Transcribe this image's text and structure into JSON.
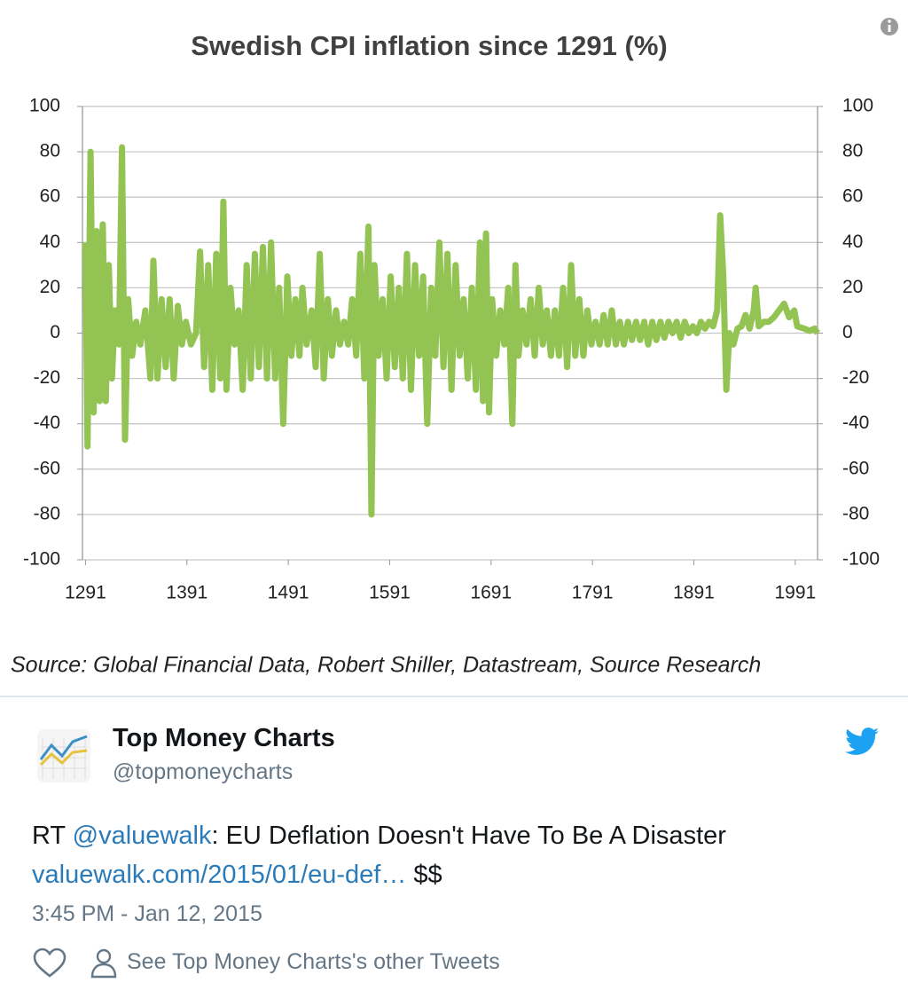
{
  "chart_data": {
    "type": "line",
    "title": "Swedish CPI inflation since 1291 (%)",
    "x": [
      1291,
      1293,
      1296,
      1299,
      1302,
      1305,
      1308,
      1311,
      1314,
      1317,
      1320,
      1324,
      1327,
      1330,
      1333,
      1337,
      1341,
      1345,
      1350,
      1355,
      1358,
      1362,
      1366,
      1370,
      1374,
      1378,
      1382,
      1386,
      1390,
      1395,
      1400,
      1404,
      1408,
      1412,
      1416,
      1420,
      1424,
      1427,
      1430,
      1434,
      1438,
      1442,
      1446,
      1450,
      1454,
      1458,
      1462,
      1466,
      1470,
      1474,
      1478,
      1482,
      1486,
      1490,
      1494,
      1498,
      1502,
      1505,
      1509,
      1514,
      1518,
      1522,
      1526,
      1530,
      1534,
      1538,
      1542,
      1546,
      1550,
      1554,
      1558,
      1562,
      1566,
      1570,
      1573,
      1576,
      1580,
      1584,
      1588,
      1592,
      1596,
      1600,
      1604,
      1608,
      1612,
      1616,
      1620,
      1624,
      1628,
      1632,
      1636,
      1640,
      1644,
      1648,
      1652,
      1656,
      1660,
      1664,
      1668,
      1672,
      1676,
      1680,
      1683,
      1686,
      1689,
      1692,
      1696,
      1700,
      1704,
      1708,
      1712,
      1715,
      1718,
      1722,
      1726,
      1730,
      1734,
      1738,
      1742,
      1746,
      1750,
      1754,
      1758,
      1762,
      1766,
      1770,
      1774,
      1778,
      1782,
      1786,
      1790,
      1794,
      1798,
      1802,
      1806,
      1810,
      1814,
      1818,
      1822,
      1826,
      1830,
      1834,
      1838,
      1842,
      1846,
      1850,
      1854,
      1858,
      1862,
      1866,
      1870,
      1874,
      1878,
      1882,
      1886,
      1890,
      1894,
      1898,
      1902,
      1906,
      1910,
      1914,
      1917,
      1920,
      1923,
      1926,
      1930,
      1934,
      1938,
      1942,
      1946,
      1950,
      1952,
      1955,
      1960,
      1965,
      1970,
      1975,
      1980,
      1985,
      1990,
      1993,
      2000,
      2005,
      2010,
      2013
    ],
    "values": [
      40,
      -50,
      80,
      -35,
      45,
      -30,
      48,
      -30,
      30,
      -20,
      10,
      -5,
      82,
      -47,
      15,
      -10,
      5,
      -5,
      10,
      -20,
      32,
      -20,
      15,
      -15,
      15,
      -20,
      12,
      -5,
      5,
      -5,
      0,
      36,
      -15,
      30,
      -25,
      35,
      -20,
      58,
      -25,
      20,
      -5,
      10,
      -25,
      30,
      -20,
      35,
      -15,
      38,
      -20,
      40,
      -20,
      20,
      -40,
      25,
      -10,
      15,
      -10,
      20,
      -5,
      10,
      -15,
      35,
      -20,
      15,
      -10,
      10,
      -5,
      5,
      -5,
      15,
      -10,
      35,
      -20,
      47,
      -80,
      30,
      -10,
      15,
      -20,
      25,
      -15,
      20,
      -20,
      35,
      -25,
      30,
      -10,
      25,
      -40,
      20,
      -10,
      40,
      -15,
      35,
      -25,
      30,
      -10,
      15,
      -20,
      20,
      -25,
      40,
      -30,
      44,
      -35,
      15,
      -10,
      10,
      -5,
      20,
      -40,
      30,
      -10,
      10,
      -5,
      15,
      -10,
      20,
      -5,
      10,
      -10,
      10,
      -10,
      20,
      -15,
      30,
      -10,
      15,
      -10,
      10,
      -5,
      5,
      -5,
      8,
      -5,
      10,
      -5,
      5,
      -5,
      5,
      -3,
      5,
      -3,
      5,
      -5,
      5,
      -3,
      5,
      -2,
      5,
      0,
      5,
      -2,
      5,
      0,
      3,
      0,
      5,
      2,
      5,
      3,
      10,
      52,
      25,
      -25,
      0,
      -5,
      2,
      3,
      8,
      2,
      10,
      20,
      3,
      5,
      5,
      7,
      10,
      13,
      7,
      10,
      3,
      2,
      1,
      2,
      0
    ],
    "color": "#92c353",
    "xlim": [
      1288,
      2013
    ],
    "xticks": [
      1291,
      1391,
      1491,
      1591,
      1691,
      1791,
      1891,
      1991
    ],
    "ylim": [
      -100,
      100
    ],
    "yticks": [
      100,
      80,
      60,
      40,
      20,
      0,
      -20,
      -40,
      -60,
      -80,
      -100
    ],
    "y2lim": [
      -100,
      100
    ],
    "y2ticks": [
      100,
      80,
      60,
      40,
      20,
      0,
      -20,
      -40,
      -60,
      -80,
      -100
    ],
    "grid": true,
    "source": "Source:  Global Financial Data, Robert Shiller, Datastream, Source Research"
  },
  "tweet": {
    "name": "Top Money Charts",
    "handle": "@topmoneycharts",
    "text": {
      "prefix": "RT ",
      "mention": "@valuewalk",
      "rest": ": EU Deflation Doesn't Have To Be A Disaster",
      "link": "valuewalk.com/2015/01/eu-def…",
      "suffix": " $$"
    },
    "time": "3:45 PM - Jan 12, 2015",
    "other": "See Top Money Charts's other Tweets"
  }
}
